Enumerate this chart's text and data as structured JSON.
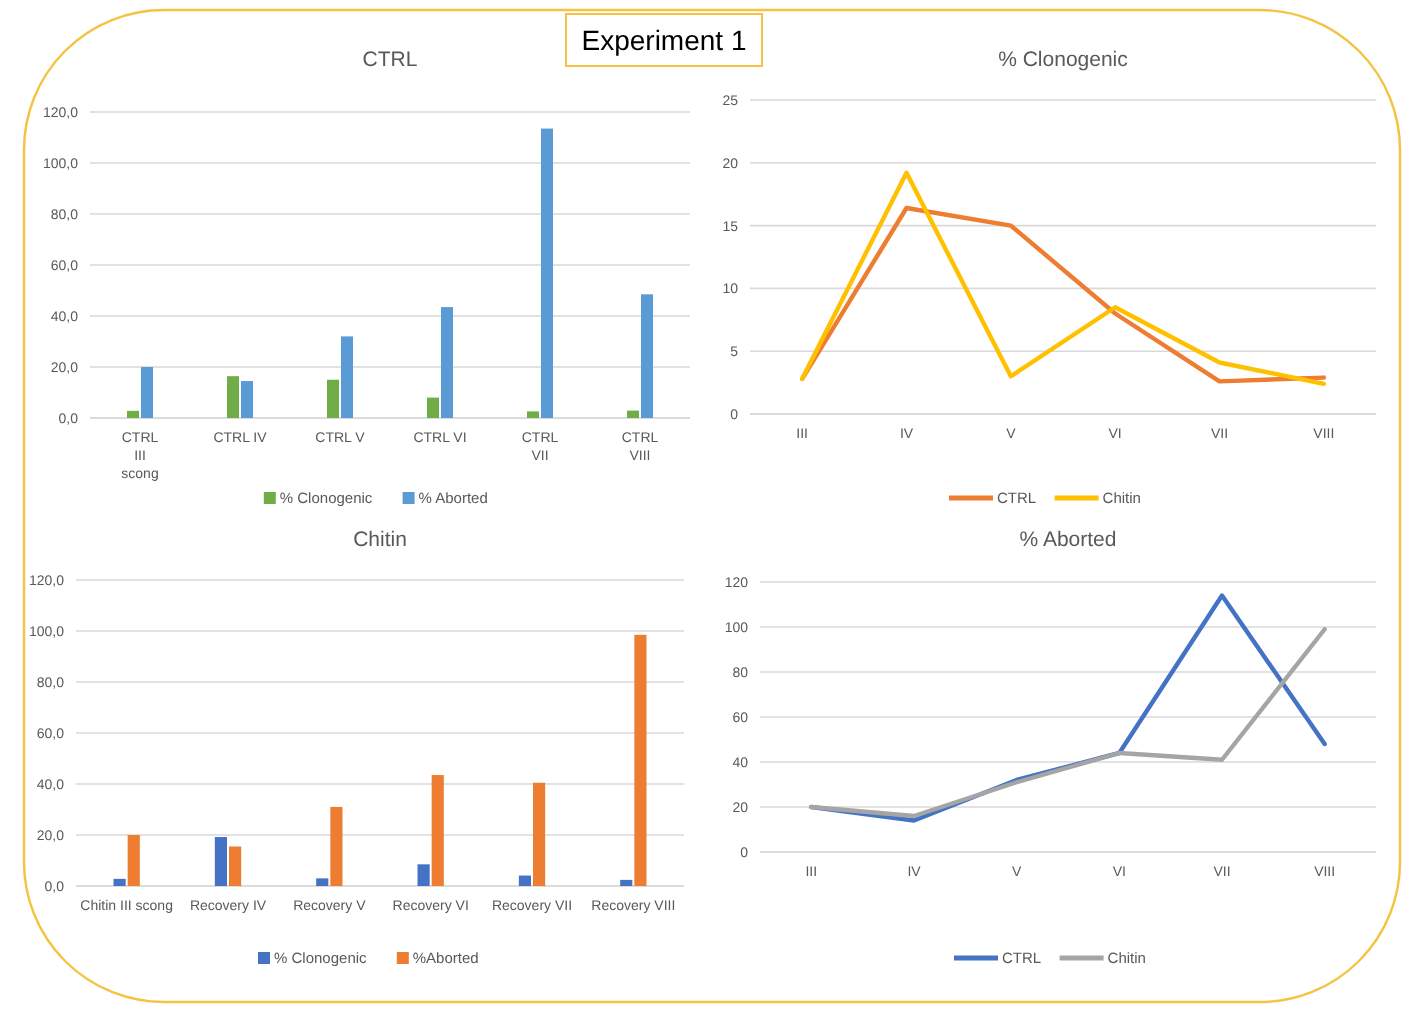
{
  "chart_data": [
    {
      "type": "other",
      "title": "Experiment 1"
    },
    {
      "type": "bar",
      "title": "CTRL",
      "categories": [
        "CTRL III scong",
        "CTRL IV",
        "CTRL V",
        "CTRL VI",
        "CTRL VII",
        "CTRL VIII"
      ],
      "series": [
        {
          "name": "% Clonogenic",
          "color": "#70ad47",
          "values": [
            2.8,
            16.4,
            15,
            8,
            2.6,
            2.9
          ]
        },
        {
          "name": "% Aborted",
          "color": "#5b9bd5",
          "values": [
            20,
            14.5,
            32,
            43.5,
            113.5,
            48.5
          ]
        }
      ],
      "ylim": [
        0,
        120
      ],
      "yticks": [
        {
          "value": 0,
          "label": "0,0"
        },
        {
          "value": 20,
          "label": "20,0"
        },
        {
          "value": 40,
          "label": "40,0"
        },
        {
          "value": 60,
          "label": "60,0"
        },
        {
          "value": 80,
          "label": "80,0"
        },
        {
          "value": 100,
          "label": "100,0"
        },
        {
          "value": 120,
          "label": "120,0"
        }
      ],
      "grid": "y",
      "legend": "bottom"
    },
    {
      "type": "line",
      "title": "% Clonogenic",
      "categories": [
        "III",
        "IV",
        "V",
        "VI",
        "VII",
        "VIII"
      ],
      "series": [
        {
          "name": "CTRL",
          "color": "#ed7d31",
          "values": [
            2.8,
            16.4,
            15,
            8,
            2.6,
            2.9
          ]
        },
        {
          "name": "Chitin",
          "color": "#ffc000",
          "values": [
            2.8,
            19.2,
            3,
            8.5,
            4.1,
            2.4
          ]
        }
      ],
      "ylim": [
        0,
        25
      ],
      "yticks": [
        0,
        5,
        10,
        15,
        20,
        25
      ],
      "grid": "y",
      "legend": "bottom"
    },
    {
      "type": "bar",
      "title": "Chitin",
      "categories": [
        "Chitin III scong",
        "Recovery IV",
        "Recovery V",
        "Recovery VI",
        "Recovery VII",
        "Recovery VIII"
      ],
      "series": [
        {
          "name": "% Clonogenic",
          "color": "#4472c4",
          "values": [
            2.8,
            19.2,
            3,
            8.5,
            4.1,
            2.4
          ]
        },
        {
          "name": "%Aborted",
          "color": "#ed7d31",
          "values": [
            20,
            15.5,
            31,
            43.5,
            40.5,
            98.5
          ]
        }
      ],
      "ylim": [
        0,
        120
      ],
      "yticks": [
        {
          "value": 0,
          "label": "0,0"
        },
        {
          "value": 20,
          "label": "20,0"
        },
        {
          "value": 40,
          "label": "40,0"
        },
        {
          "value": 60,
          "label": "60,0"
        },
        {
          "value": 80,
          "label": "80,0"
        },
        {
          "value": 100,
          "label": "100,0"
        },
        {
          "value": 120,
          "label": "120,0"
        }
      ],
      "grid": "y",
      "legend": "bottom"
    },
    {
      "type": "line",
      "title": "% Aborted",
      "categories": [
        "III",
        "IV",
        "V",
        "VI",
        "VII",
        "VIII"
      ],
      "series": [
        {
          "name": "CTRL",
          "color": "#4472c4",
          "values": [
            20,
            14,
            32,
            44,
            114,
            48
          ]
        },
        {
          "name": "Chitin",
          "color": "#a5a5a5",
          "values": [
            20,
            16,
            31,
            44,
            41,
            99
          ]
        }
      ],
      "ylim": [
        0,
        120
      ],
      "yticks": [
        0,
        20,
        40,
        60,
        80,
        100,
        120
      ],
      "grid": "y",
      "legend": "bottom"
    }
  ]
}
